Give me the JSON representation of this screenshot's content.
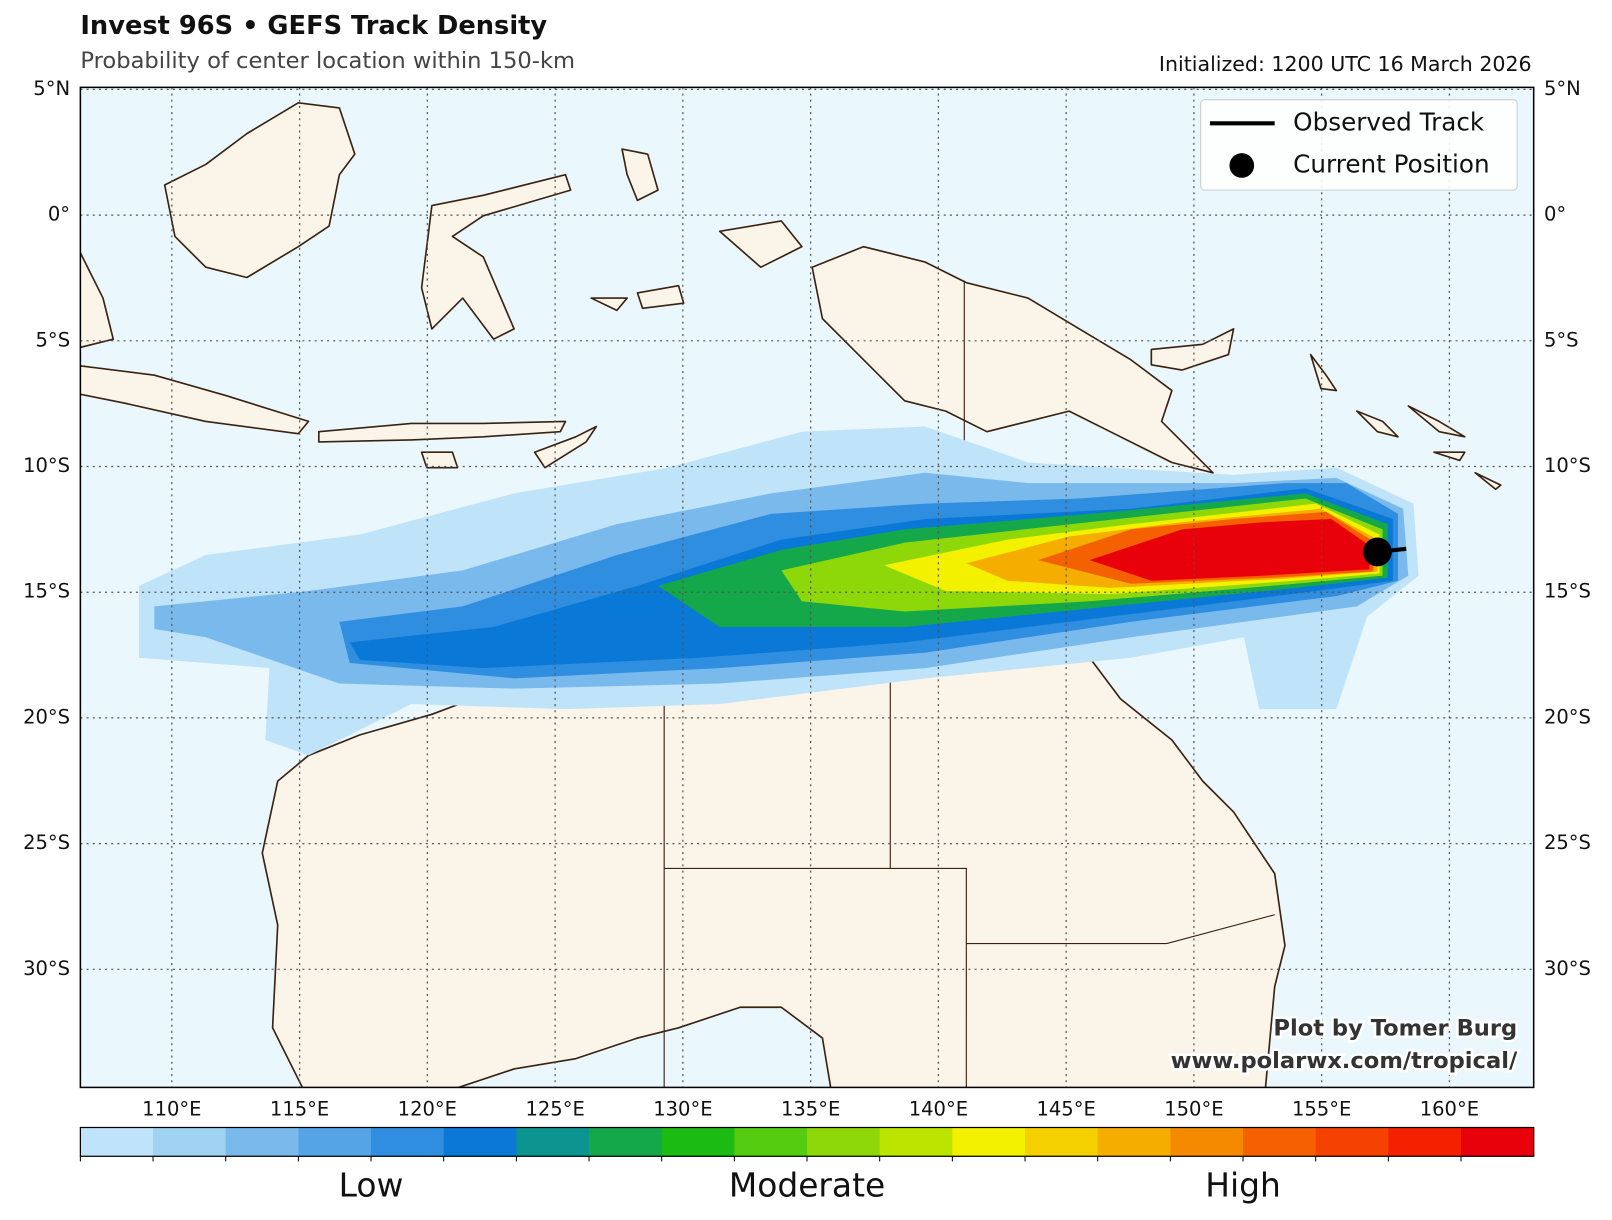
{
  "header": {
    "title": "Invest 96S • GEFS Track Density",
    "subtitle": "Probability of center location within 150-km",
    "initialized": "Initialized: 1200 UTC 16 March 2026"
  },
  "map": {
    "xticks": [
      {
        "value": 110,
        "label": "110°E"
      },
      {
        "value": 115,
        "label": "115°E"
      },
      {
        "value": 120,
        "label": "120°E"
      },
      {
        "value": 125,
        "label": "125°E"
      },
      {
        "value": 130,
        "label": "130°E"
      },
      {
        "value": 135,
        "label": "135°E"
      },
      {
        "value": 140,
        "label": "140°E"
      },
      {
        "value": 145,
        "label": "145°E"
      },
      {
        "value": 150,
        "label": "150°E"
      },
      {
        "value": 155,
        "label": "155°E"
      },
      {
        "value": 160,
        "label": "160°E"
      }
    ],
    "yticks": [
      {
        "value": 5,
        "label": "5°N"
      },
      {
        "value": 0,
        "label": "0°"
      },
      {
        "value": -5,
        "label": "5°S"
      },
      {
        "value": -10,
        "label": "10°S"
      },
      {
        "value": -15,
        "label": "15°S"
      },
      {
        "value": -20,
        "label": "20°S"
      },
      {
        "value": -25,
        "label": "25°S"
      },
      {
        "value": -30,
        "label": "30°S"
      }
    ],
    "legend": [
      "Observed Track",
      "Current Position"
    ],
    "colorbar": {
      "colors": [
        "#bfe3f8",
        "#a0d2f4",
        "#7ab9ec",
        "#55a5e6",
        "#2f8ee0",
        "#0a78d6",
        "#0c9490",
        "#14a84a",
        "#1bbb14",
        "#55cc10",
        "#8ed80a",
        "#bde400",
        "#f3f100",
        "#f5d000",
        "#f5ad00",
        "#f58a00",
        "#f56000",
        "#f54200",
        "#f52000",
        "#e8000a"
      ],
      "labels": [
        "Low",
        "Moderate",
        "High"
      ]
    },
    "credit": [
      "Plot by Tomer Burg",
      "www.polarwx.com/tropical/"
    ]
  }
}
